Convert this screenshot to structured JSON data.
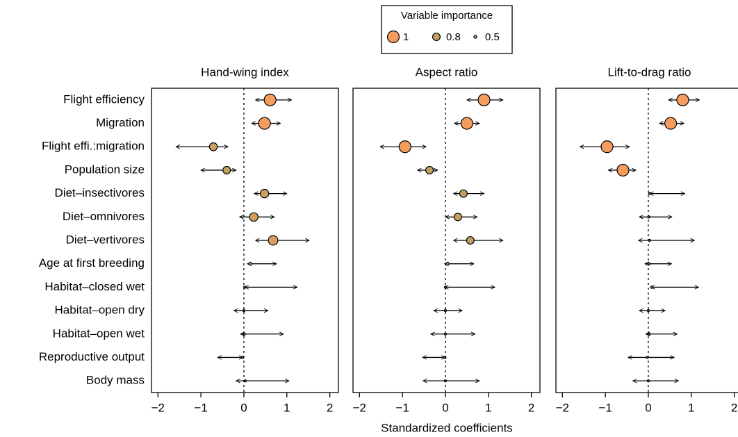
{
  "chart_data": [
    {
      "type": "forest",
      "title": "Hand-wing index",
      "values": [
        0.61,
        0.48,
        -0.71,
        -0.4,
        0.48,
        0.23,
        0.68,
        0.15,
        0.02,
        0,
        0.01,
        -0.03,
        0.03
      ],
      "lower": [
        0.27,
        0.18,
        -1.58,
        -1.0,
        0.24,
        -0.1,
        0.27,
        0.08,
        0.02,
        -0.23,
        -0.08,
        -0.61,
        -0.18
      ],
      "upper": [
        1.11,
        0.85,
        -0.37,
        -0.18,
        1.0,
        0.71,
        1.52,
        0.76,
        1.24,
        0.56,
        0.92,
        -0.02,
        1.05
      ],
      "importance": [
        1,
        1,
        0.82,
        0.8,
        0.85,
        0.85,
        0.9,
        0.5,
        0.35,
        0.3,
        0.35,
        0.35,
        0.3
      ],
      "xlim": [
        -2.15,
        2.2
      ],
      "xticks": [
        -2,
        -1,
        0,
        1,
        2
      ],
      "reference_line": 0
    },
    {
      "type": "forest",
      "title": "Aspect ratio",
      "values": [
        0.9,
        0.5,
        -0.94,
        -0.37,
        0.42,
        0.29,
        0.58,
        0.05,
        0,
        0,
        0,
        -0.01,
        0
      ],
      "lower": [
        0.5,
        0.21,
        -1.52,
        -0.65,
        0.19,
        0,
        0.19,
        -0.02,
        -0.02,
        -0.27,
        -0.34,
        -0.53,
        -0.52
      ],
      "upper": [
        1.34,
        0.79,
        -0.45,
        -0.18,
        0.9,
        0.74,
        1.34,
        0.66,
        1.15,
        0.39,
        0.69,
        0,
        0.79
      ],
      "importance": [
        1,
        1,
        1,
        0.8,
        0.8,
        0.8,
        0.8,
        0.5,
        0.35,
        0.35,
        0.3,
        0.35,
        0.3
      ],
      "xlim": [
        -2.15,
        2.2
      ],
      "xticks": [
        -2,
        -1,
        0,
        1,
        2
      ],
      "reference_line": 0
    },
    {
      "type": "forest",
      "title": "Lift-to-drag ratio",
      "values": [
        0.8,
        0.52,
        -0.96,
        -0.59,
        0.03,
        0.01,
        0.03,
        0.02,
        0.08,
        0,
        0.02,
        -0.02,
        0
      ],
      "lower": [
        0.47,
        0.26,
        -1.59,
        -0.93,
        0.03,
        -0.21,
        -0.23,
        -0.08,
        0.06,
        -0.21,
        -0.06,
        -0.47,
        -0.36
      ],
      "upper": [
        1.19,
        0.83,
        -0.44,
        -0.29,
        0.85,
        0.55,
        1.07,
        0.54,
        1.17,
        0.39,
        0.67,
        0.6,
        0.7
      ],
      "importance": [
        1,
        1,
        1,
        1,
        0.35,
        0.35,
        0.35,
        0.4,
        0.35,
        0.35,
        0.35,
        0.35,
        0.3
      ],
      "xlim": [
        -2.15,
        2.2
      ],
      "xticks": [
        -2,
        -1,
        0,
        1,
        2
      ],
      "reference_line": 0
    }
  ],
  "categories": [
    "Flight efficiency",
    "Migration",
    "Flight effi.:migration",
    "Population size",
    "Diet–insectivores",
    "Diet–omnivores",
    "Diet–vertivores",
    "Age at first breeding",
    "Habitat–closed wet",
    "Habitat–open dry",
    "Habitat–open wet",
    "Reproductive output",
    "Body mass"
  ],
  "xlabel": "Standardized coefficients",
  "legend": {
    "title": "Variable importance",
    "values": [
      1,
      0.8,
      0.5
    ],
    "colors": [
      "#f39c5e",
      "#c4a05f",
      "#8db37f"
    ]
  }
}
